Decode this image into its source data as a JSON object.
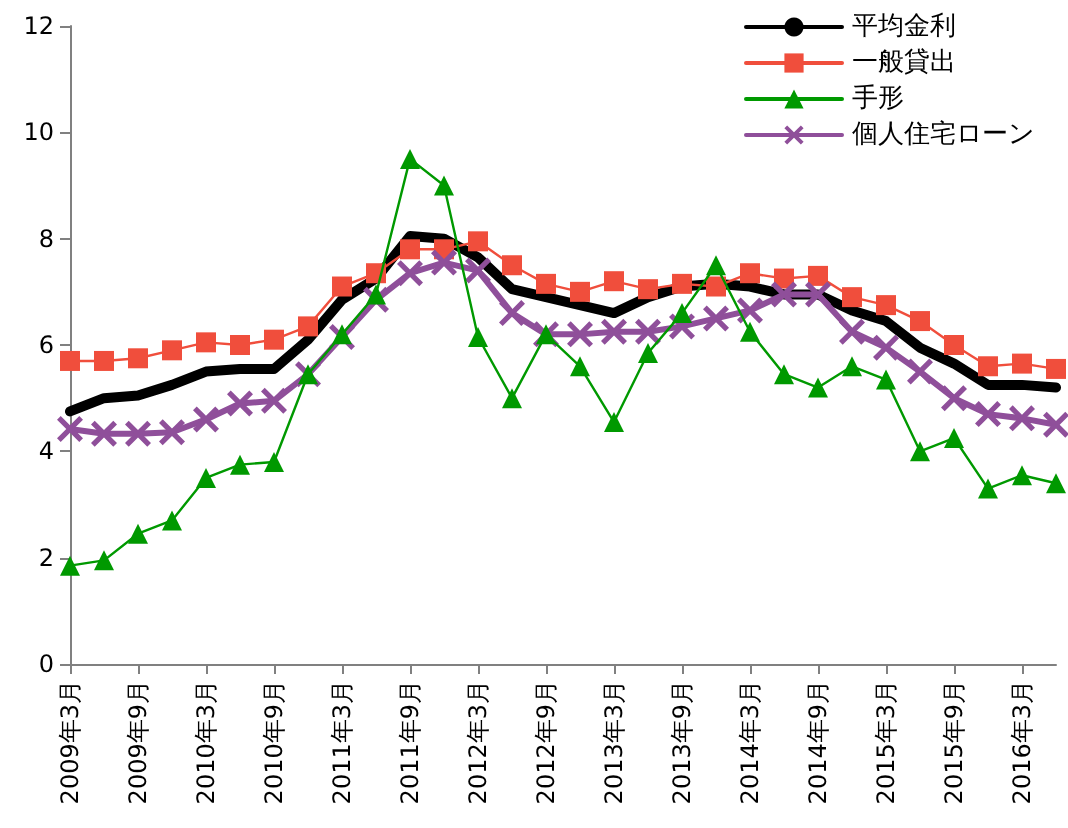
{
  "chart_data": {
    "type": "line",
    "categories": [
      "2009年3月",
      null,
      "2009年9月",
      null,
      "2010年3月",
      null,
      "2010年9月",
      null,
      "2011年3月",
      null,
      "2011年9月",
      null,
      "2012年3月",
      null,
      "2012年9月",
      null,
      "2013年3月",
      null,
      "2013年9月",
      null,
      "2014年3月",
      null,
      "2014年9月",
      null,
      "2015年3月",
      null,
      "2015年9月",
      null,
      "2016年3月",
      null
    ],
    "series": [
      {
        "name": "平均金利",
        "color": "#000000",
        "marker": "none",
        "values": [
          4.75,
          5.0,
          5.05,
          5.25,
          5.5,
          5.55,
          5.55,
          6.1,
          6.85,
          7.25,
          8.05,
          8.0,
          7.65,
          7.05,
          6.9,
          6.75,
          6.6,
          6.9,
          7.1,
          7.15,
          7.1,
          6.95,
          6.95,
          6.65,
          6.45,
          5.95,
          5.65,
          5.25,
          5.25,
          5.2
        ]
      },
      {
        "name": "一般貸出",
        "color": "#f04e3c",
        "marker": "square",
        "values": [
          5.7,
          5.7,
          5.75,
          5.9,
          6.05,
          6.0,
          6.1,
          6.35,
          7.1,
          7.35,
          7.8,
          7.8,
          7.95,
          7.5,
          7.15,
          7.0,
          7.2,
          7.05,
          7.15,
          7.1,
          7.35,
          7.25,
          7.3,
          6.9,
          6.75,
          6.45,
          6.0,
          5.6,
          5.65,
          5.55
        ]
      },
      {
        "name": "手形",
        "color": "#009900",
        "marker": "triangle",
        "values": [
          1.85,
          1.95,
          2.45,
          2.7,
          3.5,
          3.75,
          3.8,
          5.45,
          6.2,
          6.95,
          9.5,
          9.0,
          6.15,
          5.0,
          6.2,
          5.6,
          4.55,
          5.85,
          6.6,
          7.5,
          6.25,
          5.45,
          5.2,
          5.6,
          5.35,
          4.0,
          4.25,
          3.3,
          3.55,
          3.4
        ]
      },
      {
        "name": "個人住宅ローン",
        "color": "#8f4f9a",
        "marker": "cross",
        "values": [
          4.42,
          4.33,
          4.33,
          4.36,
          4.6,
          4.9,
          4.95,
          5.45,
          6.15,
          6.85,
          7.35,
          7.55,
          7.4,
          6.6,
          6.2,
          6.2,
          6.25,
          6.25,
          6.35,
          6.5,
          6.65,
          6.95,
          6.95,
          6.25,
          5.95,
          5.5,
          5.0,
          4.7,
          4.62,
          4.5
        ]
      }
    ],
    "ylim": [
      0,
      12
    ],
    "yticks": [
      0,
      2,
      4,
      6,
      8,
      10,
      12
    ],
    "grid": false,
    "legend": "top right"
  }
}
